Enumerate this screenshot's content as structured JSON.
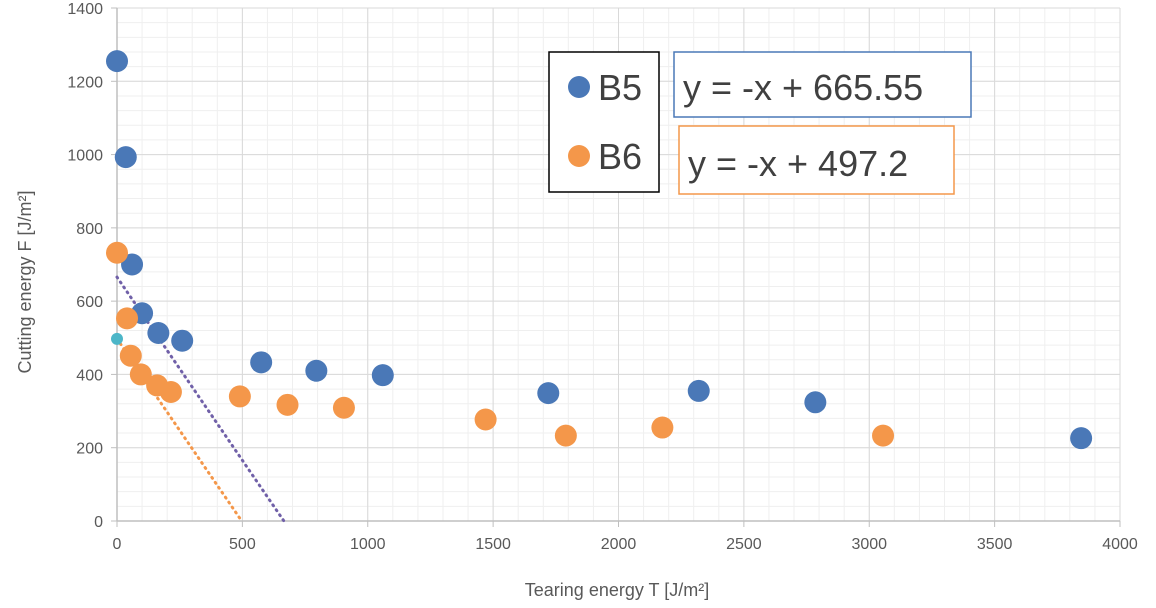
{
  "chart_data": {
    "type": "scatter",
    "xlabel": "Tearing energy T [J/m²]",
    "ylabel": "Cutting energy F [J/m²]",
    "xlim": [
      0,
      4000
    ],
    "ylim": [
      0,
      1400
    ],
    "x_ticks": [
      0,
      500,
      1000,
      1500,
      2000,
      2500,
      3000,
      3500,
      4000
    ],
    "y_ticks": [
      0,
      200,
      400,
      600,
      800,
      1000,
      1200,
      1400
    ],
    "grid": "major and minor",
    "legend_position": "top-center",
    "series": [
      {
        "name": "B5",
        "color": "#4a78b7",
        "points": [
          {
            "x": 0,
            "y": 1255
          },
          {
            "x": 35,
            "y": 993
          },
          {
            "x": 60,
            "y": 700
          },
          {
            "x": 100,
            "y": 567
          },
          {
            "x": 165,
            "y": 513
          },
          {
            "x": 260,
            "y": 492
          },
          {
            "x": 575,
            "y": 433
          },
          {
            "x": 795,
            "y": 410
          },
          {
            "x": 1060,
            "y": 398
          },
          {
            "x": 1720,
            "y": 349
          },
          {
            "x": 2320,
            "y": 355
          },
          {
            "x": 2785,
            "y": 324
          },
          {
            "x": 3845,
            "y": 226
          }
        ]
      },
      {
        "name": "B6",
        "color": "#f4974a",
        "points": [
          {
            "x": 0,
            "y": 732
          },
          {
            "x": 40,
            "y": 553
          },
          {
            "x": 55,
            "y": 451
          },
          {
            "x": 95,
            "y": 400
          },
          {
            "x": 160,
            "y": 370
          },
          {
            "x": 215,
            "y": 352
          },
          {
            "x": 490,
            "y": 340
          },
          {
            "x": 680,
            "y": 317
          },
          {
            "x": 905,
            "y": 309
          },
          {
            "x": 1470,
            "y": 277
          },
          {
            "x": 1790,
            "y": 233
          },
          {
            "x": 2175,
            "y": 255
          },
          {
            "x": 3055,
            "y": 233
          }
        ]
      }
    ],
    "extra_points": [
      {
        "x": 0,
        "y": 497,
        "color": "#4cb6c8"
      }
    ],
    "trendlines": [
      {
        "series": "B5",
        "equation": "y = -x + 665.55",
        "x": [
          0,
          665.55
        ],
        "y": [
          665.55,
          0
        ],
        "color": "#7060a8",
        "box_border": "#4a78b7"
      },
      {
        "series": "B6",
        "equation": "y = -x + 497.2",
        "x": [
          0,
          497.2
        ],
        "y": [
          497.2,
          0
        ],
        "color": "#f4974a",
        "box_border": "#f4974a"
      }
    ]
  }
}
